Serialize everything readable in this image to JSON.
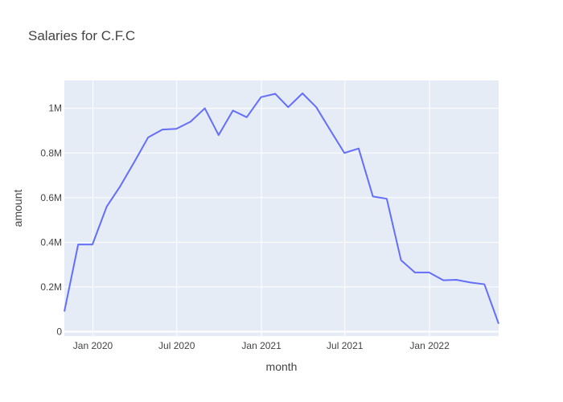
{
  "chart_data": {
    "type": "line",
    "title": "Salaries for C.F.C",
    "xlabel": "month",
    "ylabel": "amount",
    "x_ticks": [
      {
        "date": "2020-01-01",
        "label": "Jan 2020"
      },
      {
        "date": "2020-07-01",
        "label": "Jul 2020"
      },
      {
        "date": "2021-01-01",
        "label": "Jan 2021"
      },
      {
        "date": "2021-07-01",
        "label": "Jul 2021"
      },
      {
        "date": "2022-01-01",
        "label": "Jan 2022"
      }
    ],
    "y_ticks": [
      {
        "value": 0,
        "label": "0"
      },
      {
        "value": 200000,
        "label": "0.2M"
      },
      {
        "value": 400000,
        "label": "0.4M"
      },
      {
        "value": 600000,
        "label": "0.6M"
      },
      {
        "value": 800000,
        "label": "0.8M"
      },
      {
        "value": 1000000,
        "label": "1M"
      }
    ],
    "xlim": [
      "2019-10-31",
      "2022-05-31"
    ],
    "ylim": [
      -20000,
      1125000
    ],
    "grid": true,
    "line_color": "#636efa",
    "plot_bg": "#e5ecf6",
    "x": [
      "2019-10-31",
      "2019-11-30",
      "2019-12-31",
      "2020-01-31",
      "2020-02-29",
      "2020-03-31",
      "2020-04-30",
      "2020-05-31",
      "2020-06-30",
      "2020-07-31",
      "2020-08-31",
      "2020-09-30",
      "2020-10-31",
      "2020-11-30",
      "2020-12-31",
      "2021-01-31",
      "2021-02-28",
      "2021-03-31",
      "2021-04-30",
      "2021-05-31",
      "2021-06-30",
      "2021-07-31",
      "2021-08-31",
      "2021-09-30",
      "2021-10-31",
      "2021-11-30",
      "2021-12-31",
      "2022-01-31",
      "2022-02-28",
      "2022-03-31",
      "2022-04-30",
      "2022-05-31"
    ],
    "values": [
      90000,
      390000,
      390000,
      560000,
      650000,
      760000,
      870000,
      905000,
      908000,
      940000,
      1000000,
      880000,
      990000,
      960000,
      1050000,
      1065000,
      1005000,
      1067000,
      1005000,
      900000,
      800000,
      820000,
      605000,
      595000,
      320000,
      265000,
      265000,
      230000,
      232000,
      220000,
      212000,
      35000
    ]
  }
}
